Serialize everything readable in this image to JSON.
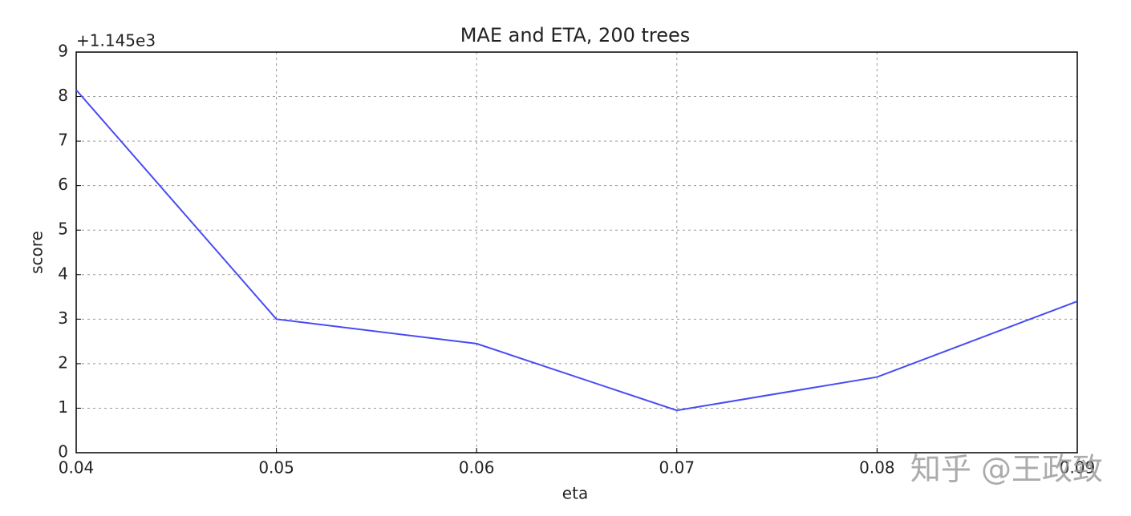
{
  "chart_data": {
    "type": "line",
    "title": "MAE and ETA, 200 trees",
    "x_label": "eta",
    "y_label": "score",
    "offset_label": "+1.145e3",
    "x": [
      0.04,
      0.05,
      0.06,
      0.07,
      0.08,
      0.09
    ],
    "values": [
      8.15,
      3.0,
      2.45,
      0.95,
      1.7,
      3.4
    ],
    "color": "#4a4af5",
    "xlim": [
      0.04,
      0.09
    ],
    "xticks": [
      0.04,
      0.05,
      0.06,
      0.07,
      0.08,
      0.09
    ],
    "ylim": [
      0,
      9
    ],
    "yticks": [
      0,
      1,
      2,
      3,
      4,
      5,
      6,
      7,
      8,
      9
    ],
    "grid": true,
    "watermark": "知乎 @王政致"
  }
}
